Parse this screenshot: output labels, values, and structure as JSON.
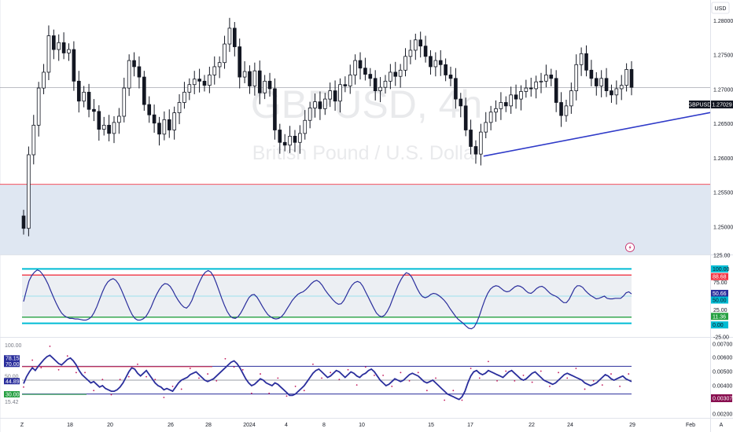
{
  "watermark": {
    "symbol": "GBPUSD, 4h",
    "name": "British Pound / U.S. Dollar"
  },
  "currency_label": "USD",
  "price_tag": {
    "symbol": "GBPUSD",
    "value": "1.27029"
  },
  "time_axis": {
    "labels": [
      "18",
      "20",
      "26",
      "28",
      "2024",
      "4",
      "8",
      "10",
      "15",
      "17",
      "22",
      "24",
      "29",
      "Feb"
    ],
    "corner_left": "Z",
    "corner_right": "A"
  },
  "colors": {
    "candle": "#131722",
    "trendline": "#2f3ac8",
    "zone_fill": "#dfe7f2",
    "zone_line": "#f23645",
    "osc_line": "#2a2e9c",
    "cyan_band": "#00bcd4",
    "red_band": "#f23645",
    "green_band": "#26a042",
    "dot": "#c2185b"
  },
  "chart_data": [
    {
      "type": "candlestick",
      "title": "GBPUSD, 4h",
      "ylim": [
        1.246,
        1.283
      ],
      "y_ticks": [
        "1.28000",
        "1.27500",
        "1.27000",
        "1.26500",
        "1.26000",
        "1.25500",
        "1.25000"
      ],
      "last_price": 1.27029,
      "support_zone": [
        1.246,
        1.2562
      ],
      "trendline": {
        "start": {
          "x": 174,
          "y": 1.2603
        },
        "end": {
          "x": 350,
          "y": 1.2733
        }
      },
      "close": [
        1.2498,
        1.2605,
        1.2648,
        1.2702,
        1.2725,
        1.2778,
        1.2758,
        1.2768,
        1.2753,
        1.2758,
        1.2712,
        1.2683,
        1.2696,
        1.2671,
        1.2668,
        1.2642,
        1.2648,
        1.2636,
        1.2652,
        1.2661,
        1.2702,
        1.2742,
        1.2733,
        1.2718,
        1.2678,
        1.2663,
        1.2651,
        1.2635,
        1.2656,
        1.2641,
        1.2666,
        1.2681,
        1.2696,
        1.2707,
        1.2715,
        1.2712,
        1.2706,
        1.2721,
        1.2733,
        1.2739,
        1.2766,
        1.2789,
        1.2762,
        1.2718,
        1.2726,
        1.2705,
        1.2727,
        1.2695,
        1.2712,
        1.2701,
        1.2641,
        1.2623,
        1.2619,
        1.2632,
        1.2623,
        1.2636,
        1.2655,
        1.2673,
        1.2682,
        1.2672,
        1.2686,
        1.2698,
        1.2683,
        1.2707,
        1.2705,
        1.2721,
        1.2742,
        1.2731,
        1.2722,
        1.2716,
        1.2698,
        1.2703,
        1.2712,
        1.2725,
        1.2719,
        1.2728,
        1.2748,
        1.2757,
        1.2772,
        1.2763,
        1.2748,
        1.2733,
        1.2742,
        1.2736,
        1.2721,
        1.2716,
        1.2686,
        1.2676,
        1.2641,
        1.2617,
        1.2606,
        1.2638,
        1.2652,
        1.2667,
        1.2672,
        1.2681,
        1.2676,
        1.2692,
        1.2686,
        1.2697,
        1.2702,
        1.2701,
        1.2711,
        1.2712,
        1.2721,
        1.2716,
        1.2681,
        1.2662,
        1.2676,
        1.2698,
        1.2736,
        1.2752,
        1.2728,
        1.2716,
        1.2705,
        1.2716,
        1.2698,
        1.2692,
        1.2701,
        1.2706,
        1.2729,
        1.2703
      ],
      "time_labels": [
        "18",
        "20",
        "26",
        "28",
        "2024",
        "4",
        "8",
        "10",
        "15",
        "17",
        "22",
        "24",
        "29",
        "Feb"
      ]
    },
    {
      "type": "line",
      "panel": "oscillator",
      "ylim": [
        -25,
        125
      ],
      "y_ticks": [
        "125.00",
        "75.00",
        "25.00",
        "-25.00"
      ],
      "bands": {
        "upper_outer": 100,
        "upper": 88.68,
        "mid": 50,
        "lower": 11.36,
        "lower_outer": 0
      },
      "tags": [
        "100.00",
        "88.68",
        "50.66",
        "50.00",
        "11.36",
        "0.00"
      ],
      "values": [
        40,
        60,
        78,
        88,
        94,
        98,
        96,
        90,
        82,
        72,
        60,
        48,
        37,
        27,
        19,
        14,
        11,
        9,
        9,
        8,
        8,
        7,
        6,
        6,
        8,
        12,
        20,
        31,
        44,
        57,
        68,
        76,
        80,
        82,
        79,
        72,
        62,
        50,
        38,
        26,
        16,
        9,
        6,
        6,
        8,
        12,
        20,
        30,
        42,
        53,
        62,
        69,
        73,
        72,
        68,
        60,
        50,
        42,
        35,
        30,
        28,
        33,
        42,
        55,
        67,
        78,
        88,
        94,
        97,
        94,
        86,
        74,
        60,
        46,
        33,
        22,
        14,
        10,
        9,
        12,
        19,
        28,
        38,
        47,
        52,
        53,
        48,
        40,
        31,
        23,
        16,
        12,
        9,
        8,
        9,
        12,
        18,
        26,
        34,
        42,
        48,
        53,
        56,
        58,
        62,
        67,
        73,
        77,
        79,
        76,
        70,
        62,
        55,
        49,
        43,
        38,
        35,
        36,
        42,
        52,
        62,
        70,
        75,
        77,
        75,
        68,
        58,
        48,
        38,
        28,
        19,
        14,
        12,
        15,
        22,
        32,
        45,
        58,
        70,
        80,
        88,
        93,
        91,
        85,
        75,
        64,
        55,
        49,
        47,
        49,
        53,
        55,
        54,
        51,
        47,
        42,
        36,
        28,
        21,
        14,
        8,
        4,
        0,
        -5,
        -9,
        -10,
        -7,
        2,
        15,
        30,
        44,
        55,
        63,
        67,
        69,
        68,
        64,
        60,
        58,
        59,
        63,
        67,
        69,
        68,
        65,
        60,
        56,
        55,
        59,
        64,
        67,
        68,
        65,
        60,
        55,
        52,
        50,
        47,
        42,
        38,
        38,
        44,
        54,
        64,
        69,
        69,
        66,
        60,
        55,
        51,
        48,
        45,
        46,
        48,
        50,
        46,
        45,
        45,
        46,
        46,
        46,
        50,
        56,
        58,
        54
      ]
    },
    {
      "type": "line",
      "panel": "sub_indicator",
      "y_ticks_left": [
        "100.00",
        "78.15",
        "70.00",
        "50.00",
        "44.89",
        "30.00",
        "15.42"
      ],
      "y_ticks_right": [
        "0.00700",
        "0.00600",
        "0.00500",
        "0.00400",
        "0.00307",
        "0.00300",
        "0.00200"
      ],
      "levels": {
        "upper": 70,
        "mid": 50,
        "lower": 30
      },
      "values": [
        45,
        55,
        62,
        68,
        64,
        70,
        75,
        80,
        84,
        86,
        82,
        78,
        74,
        72,
        76,
        80,
        82,
        78,
        72,
        64,
        58,
        54,
        50,
        46,
        48,
        44,
        40,
        42,
        38,
        36,
        34,
        34,
        36,
        40,
        46,
        54,
        62,
        68,
        66,
        60,
        56,
        60,
        64,
        58,
        52,
        46,
        42,
        40,
        36,
        38,
        36,
        34,
        40,
        46,
        50,
        52,
        54,
        58,
        60,
        62,
        58,
        54,
        50,
        48,
        50,
        52,
        56,
        60,
        64,
        68,
        72,
        76,
        78,
        74,
        68,
        60,
        52,
        46,
        42,
        44,
        48,
        52,
        50,
        46,
        44,
        42,
        46,
        44,
        40,
        36,
        32,
        28,
        28,
        30,
        34,
        38,
        42,
        48,
        54,
        60,
        64,
        66,
        62,
        58,
        54,
        56,
        60,
        64,
        62,
        58,
        54,
        58,
        62,
        60,
        56,
        54,
        58,
        60,
        64,
        66,
        62,
        56,
        50,
        46,
        42,
        44,
        48,
        52,
        50,
        48,
        50,
        54,
        58,
        60,
        58,
        56,
        52,
        48,
        46,
        48,
        50,
        46,
        42,
        38,
        34,
        30,
        28,
        26,
        24,
        22,
        26,
        34,
        46,
        56,
        62,
        64,
        60,
        58,
        60,
        64,
        62,
        60,
        58,
        56,
        54,
        58,
        62,
        64,
        60,
        56,
        52,
        50,
        52,
        56,
        60,
        62,
        58,
        54,
        50,
        48,
        46,
        44,
        46,
        50,
        54,
        58,
        60,
        58,
        56,
        54,
        52,
        50,
        46,
        44,
        42,
        44,
        46,
        50,
        54,
        58,
        56,
        52,
        50,
        52,
        54,
        56,
        52,
        50,
        48
      ]
    }
  ]
}
